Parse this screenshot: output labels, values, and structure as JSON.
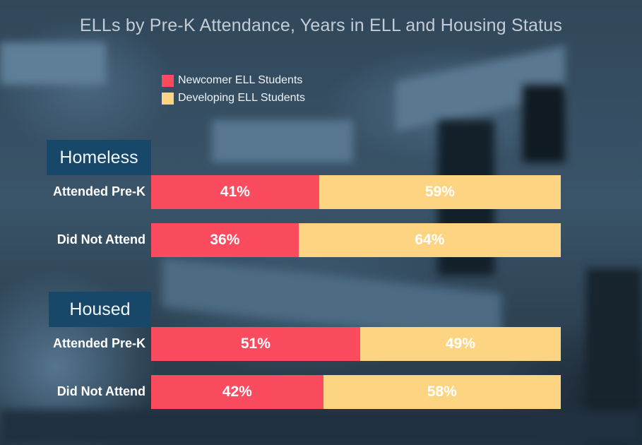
{
  "chart_data": {
    "type": "bar",
    "orientation": "horizontal",
    "stacked": true,
    "percent_stacked": true,
    "title": "ELLs by Pre-K Attendance, Years in ELL and Housing Status",
    "xlabel": "",
    "ylabel": "",
    "xlim": [
      0,
      100
    ],
    "grid": false,
    "legend_position": "top-left",
    "legend": [
      {
        "name": "Newcomer ELL Students",
        "color": "#fb4b5f"
      },
      {
        "name": "Developing ELL Students",
        "color": "#fdd582"
      }
    ],
    "groups": [
      {
        "name": "Homeless",
        "categories": [
          "Attended Pre-K",
          "Did Not Attend"
        ],
        "series": [
          {
            "name": "Newcomer ELL Students",
            "values": [
              41,
              36
            ],
            "labels": [
              "41%",
              "36%"
            ]
          },
          {
            "name": "Developing ELL Students",
            "values": [
              59,
              64
            ],
            "labels": [
              "59%",
              "64%"
            ]
          }
        ]
      },
      {
        "name": "Housed",
        "categories": [
          "Attended Pre-K",
          "Did Not Attend"
        ],
        "series": [
          {
            "name": "Newcomer ELL Students",
            "values": [
              51,
              42
            ],
            "labels": [
              "51%",
              "42%"
            ]
          },
          {
            "name": "Developing ELL Students",
            "values": [
              49,
              58
            ],
            "labels": [
              "49%",
              "58%"
            ]
          }
        ]
      }
    ]
  },
  "colors": {
    "newcomer": "#fb4b5f",
    "developing": "#fdd582",
    "group_header_bg": "#17486a"
  }
}
